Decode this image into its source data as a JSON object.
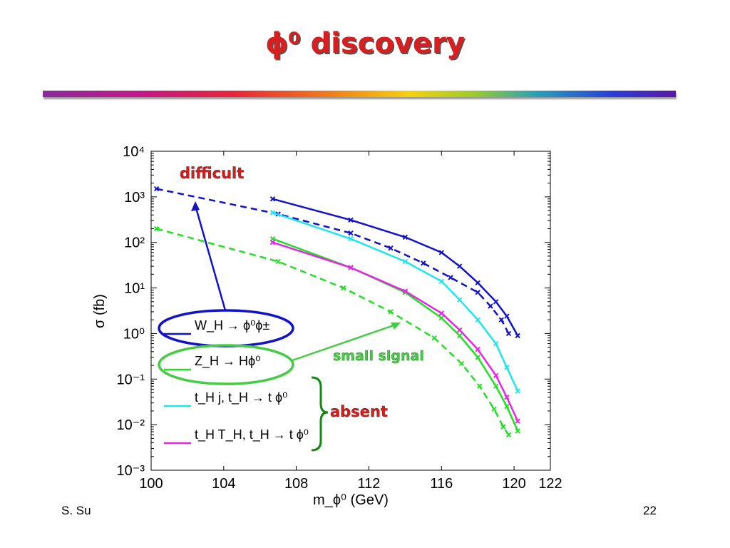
{
  "slide": {
    "title": "ϕ⁰ discovery",
    "footer_author": "S. Su",
    "page_number": "22"
  },
  "colors": {
    "W": "#1212c8",
    "Z": "#22e022",
    "tj": "#1ee6f0",
    "TT": "#e826e8",
    "annotation_red": "#e01818",
    "annotation_green": "#44cc44",
    "brace": "#118811"
  },
  "chart_data": {
    "type": "line",
    "title": "",
    "xlabel": "m_ϕ⁰ (GeV)",
    "ylabel": "σ (fb)",
    "yscale": "log",
    "xlim": [
      100,
      122
    ],
    "ylim": [
      0.001,
      10000
    ],
    "x_ticks": [
      "100",
      "104",
      "108",
      "112",
      "116",
      "120",
      "122"
    ],
    "y_ticks": [
      "10⁻³",
      "10⁻²",
      "10⁻¹",
      "10⁰",
      "10¹",
      "10²",
      "10³",
      "10⁴"
    ],
    "grid": false,
    "legend_position": "lower-left",
    "series": [
      {
        "name": "W_H → ϕ⁰ϕ±",
        "process": "W",
        "style": "solid",
        "x": [
          106.7,
          111,
          114,
          116,
          117,
          118,
          119,
          119.6,
          120.2
        ],
        "y": [
          900,
          310,
          130,
          60,
          30,
          13,
          5,
          2.4,
          0.9
        ]
      },
      {
        "name": "",
        "process": "W",
        "style": "dashed",
        "x": [
          100.3,
          107,
          111,
          113.2,
          115,
          116.5,
          118,
          118.7,
          119.3,
          119.7
        ],
        "y": [
          1500,
          420,
          160,
          75,
          35,
          17,
          8,
          4,
          2,
          1
        ]
      },
      {
        "name": "Z_H → Hϕ⁰",
        "process": "Z",
        "style": "solid",
        "x": [
          106.7,
          111,
          114,
          116,
          117,
          118,
          119,
          119.6,
          120.2
        ],
        "y": [
          120,
          28,
          8,
          2.2,
          0.9,
          0.3,
          0.07,
          0.025,
          0.0073
        ]
      },
      {
        "name": "",
        "process": "Z",
        "style": "dashed",
        "x": [
          100.3,
          107,
          110.6,
          113.2,
          115.6,
          117.1,
          118.1,
          118.9,
          119.4,
          119.7
        ],
        "y": [
          200,
          38,
          10,
          3,
          0.8,
          0.22,
          0.07,
          0.022,
          0.009,
          0.006
        ]
      },
      {
        "name": "t_H j, t_H → t ϕ⁰",
        "process": "tj",
        "style": "solid",
        "x": [
          106.7,
          111,
          114,
          116,
          117,
          118,
          119,
          119.6,
          120.2
        ],
        "y": [
          450,
          120,
          38,
          14,
          5.5,
          2,
          0.6,
          0.18,
          0.055
        ]
      },
      {
        "name": "t_H T_H, t_H → t ϕ⁰",
        "process": "TT",
        "style": "solid",
        "x": [
          106.7,
          111,
          114,
          116,
          117,
          118,
          119,
          119.6,
          120.2
        ],
        "y": [
          100,
          28,
          8.5,
          2.8,
          1.2,
          0.45,
          0.12,
          0.04,
          0.012
        ]
      }
    ],
    "annotations": [
      {
        "text": "difficult"
      },
      {
        "text": "small signal"
      },
      {
        "text": "absent"
      }
    ]
  }
}
